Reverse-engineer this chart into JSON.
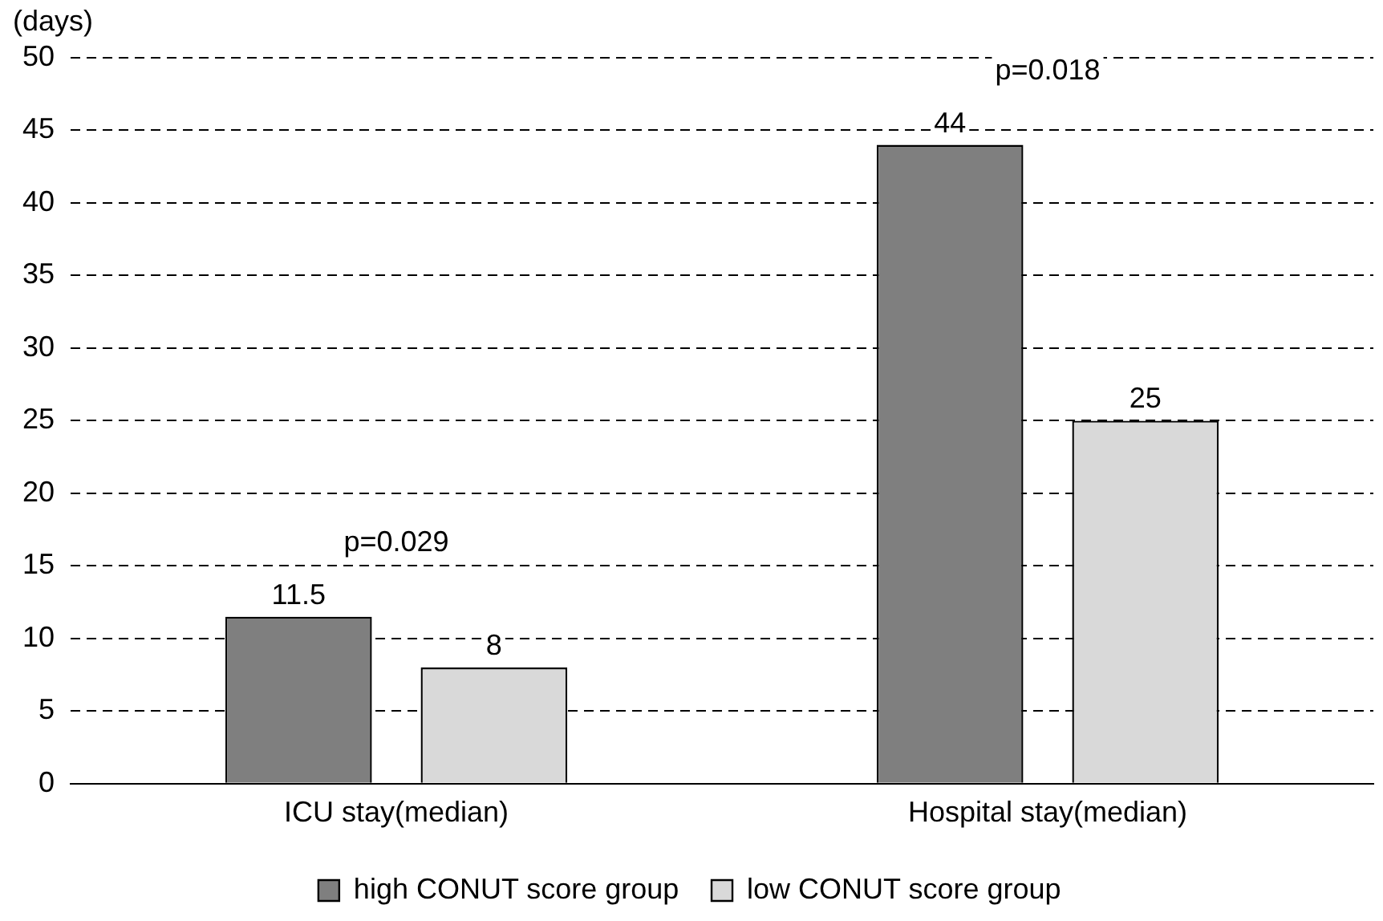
{
  "chart_data": {
    "type": "bar",
    "ylabel": "(days)",
    "categories": [
      "ICU stay(median)",
      "Hospital stay(median)"
    ],
    "series": [
      {
        "name": "high CONUT score group",
        "color": "#7f7f7f",
        "values": [
          11.5,
          44
        ]
      },
      {
        "name": "low CONUT score group",
        "color": "#d9d9d9",
        "values": [
          8,
          25
        ]
      }
    ],
    "ylim": [
      0,
      50
    ],
    "yticks": [
      0,
      5,
      10,
      15,
      20,
      25,
      30,
      35,
      40,
      45,
      50
    ],
    "grid": "y",
    "legend": "bottom",
    "data_labels": true,
    "annotations": [
      "p=0.029",
      "p=0.018"
    ]
  }
}
